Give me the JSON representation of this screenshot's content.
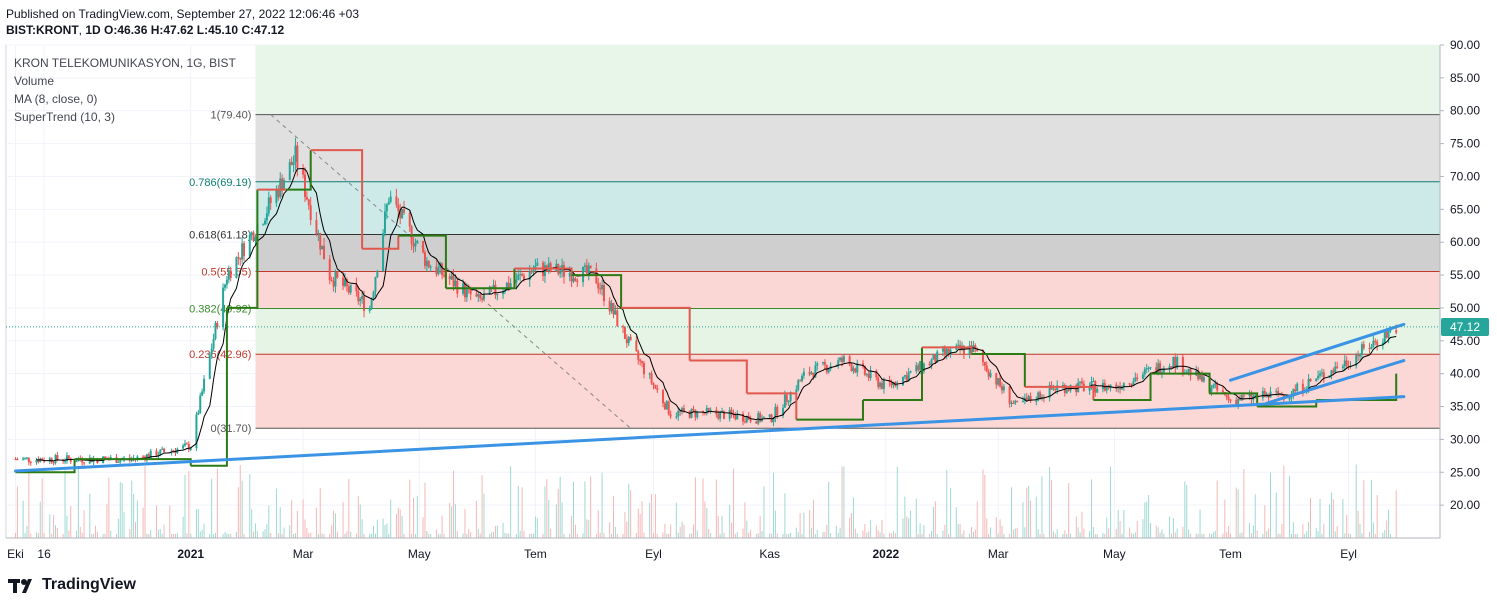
{
  "header": {
    "published": "Published on TradingView.com, September 27, 2022 12:06:46 +03",
    "symbol": "BIST:KRONT",
    "interval": "1D",
    "ohlc_text": "O:46.36 H:47.62 L:45.10 C:47.12"
  },
  "legend": {
    "title": "KRON TELEKOMUNIKASYON, 1G, BIST",
    "volume": "Volume",
    "ma": "MA (8, close, 0)",
    "supertrend": "SuperTrend (10, 3)"
  },
  "last_price": "47.12",
  "brand": "TradingView",
  "colors": {
    "up": "#26a69a",
    "down": "#ef5350",
    "supertrend_down": "#e0584e",
    "supertrend_up": "#2b7a14",
    "ma": "#000000",
    "trendline": "#3a93e4"
  },
  "chart_data": {
    "type": "line",
    "title": "KRON TELEKOMUNIKASYON, 1G, BIST",
    "ylim": [
      15,
      90
    ],
    "y_ticks": [
      "90.00",
      "85.00",
      "80.00",
      "75.00",
      "70.00",
      "65.00",
      "60.00",
      "55.00",
      "50.00",
      "45.00",
      "40.00",
      "35.00",
      "30.00",
      "25.00",
      "20.00"
    ],
    "x_ticks": [
      "Eki",
      "16",
      "2021",
      "Mar",
      "May",
      "Tem",
      "Eyl",
      "Kas",
      "2022",
      "Mar",
      "May",
      "Tem",
      "Eyl"
    ],
    "fib_levels": [
      {
        "label": "1(79.40)",
        "value": 79.4
      },
      {
        "label": "0.786(69.19)",
        "value": 69.19
      },
      {
        "label": "0.618(61.18)",
        "value": 61.18
      },
      {
        "label": "0.5(55.55)",
        "value": 55.55
      },
      {
        "label": "0.382(49.92)",
        "value": 49.92
      },
      {
        "label": "0.236(42.96)",
        "value": 42.96
      },
      {
        "label": "0(31.70)",
        "value": 31.7
      }
    ],
    "series": [
      {
        "name": "KRONT close",
        "x": [
          "2020-10-01",
          "2020-11-01",
          "2020-12-01",
          "2021-01-01",
          "2021-01-20",
          "2021-02-10",
          "2021-02-25",
          "2021-03-15",
          "2021-04-05",
          "2021-04-15",
          "2021-05-05",
          "2021-06-01",
          "2021-07-01",
          "2021-08-01",
          "2021-08-20",
          "2021-09-10",
          "2021-10-01",
          "2021-11-01",
          "2021-11-20",
          "2021-12-10",
          "2022-01-01",
          "2022-02-01",
          "2022-02-15",
          "2022-03-10",
          "2022-04-01",
          "2022-05-01",
          "2022-06-01",
          "2022-07-01",
          "2022-08-01",
          "2022-09-01",
          "2022-09-26"
        ],
        "y": [
          27,
          27,
          27,
          29,
          55,
          65,
          73,
          55,
          50,
          67,
          57,
          51,
          56,
          55,
          44,
          34,
          34,
          33,
          40,
          42,
          38,
          43,
          44,
          35,
          38,
          38,
          42,
          36,
          37,
          42,
          47.12
        ]
      },
      {
        "name": "SuperTrend",
        "x": [
          "2020-10-01",
          "2020-11-01",
          "2020-12-01",
          "2021-01-01",
          "2021-01-20",
          "2021-02-05",
          "2021-02-20",
          "2021-03-05",
          "2021-04-01",
          "2021-04-20",
          "2021-05-15",
          "2021-06-20",
          "2021-07-20",
          "2021-08-15",
          "2021-09-20",
          "2021-10-20",
          "2021-11-15",
          "2021-12-20",
          "2022-01-20",
          "2022-02-15",
          "2022-03-15",
          "2022-04-20",
          "2022-05-20",
          "2022-06-20",
          "2022-07-15",
          "2022-08-15",
          "2022-09-26"
        ],
        "y": [
          25,
          27,
          27,
          26,
          50,
          68,
          68,
          74,
          59,
          61,
          53,
          56,
          55,
          50,
          42,
          37,
          33,
          36,
          44,
          43,
          38,
          36,
          40,
          37,
          35,
          36,
          40
        ]
      }
    ],
    "trendlines": [
      {
        "from": [
          "2020-10-01",
          25.2
        ],
        "to": [
          "2022-09-30",
          36.5
        ]
      },
      {
        "from": [
          "2022-07-01",
          39
        ],
        "to": [
          "2022-09-30",
          47.5
        ]
      },
      {
        "from": [
          "2022-07-20",
          35.5
        ],
        "to": [
          "2022-09-30",
          42
        ]
      }
    ]
  }
}
